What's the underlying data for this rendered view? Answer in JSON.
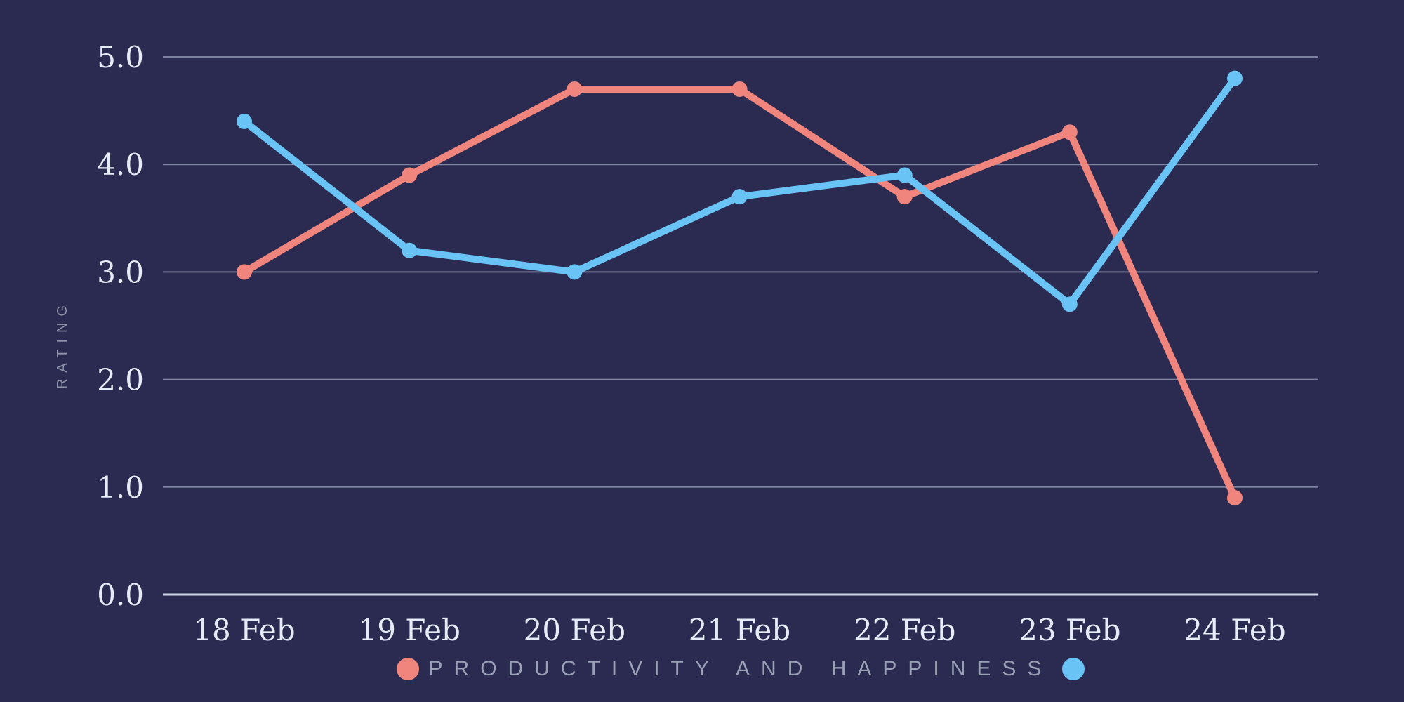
{
  "chart_data": {
    "type": "line",
    "title": "",
    "x": [
      "18 Feb",
      "19 Feb",
      "20 Feb",
      "21 Feb",
      "22 Feb",
      "23 Feb",
      "24 Feb"
    ],
    "series": [
      {
        "name": "Productivity",
        "color": "#f0857d",
        "values": [
          3.0,
          3.9,
          4.7,
          4.7,
          3.7,
          4.3,
          0.9
        ]
      },
      {
        "name": "Happiness",
        "color": "#69c3f4",
        "values": [
          4.4,
          3.2,
          3.0,
          3.7,
          3.9,
          2.7,
          4.8
        ]
      }
    ],
    "xlabel": "",
    "ylabel": "RATING",
    "ylim": [
      0,
      5
    ],
    "yticks": [
      "0.0",
      "1.0",
      "2.0",
      "3.0",
      "4.0",
      "5.0"
    ],
    "grid": "horizontal only",
    "legend": {
      "position": "bottom center",
      "text": "PRODUCTIVITY AND HAPPINESS",
      "left_dot_series": "Productivity",
      "right_dot_series": "Happiness"
    },
    "colors": {
      "background": "#2b2b51",
      "gridline": "#7d81a0",
      "zero_line": "#ccd4e3",
      "tick_text": "#e5ecf6",
      "muted_text": "#9aa0b5",
      "productivity": "#f0857d",
      "happiness": "#69c3f4"
    }
  }
}
